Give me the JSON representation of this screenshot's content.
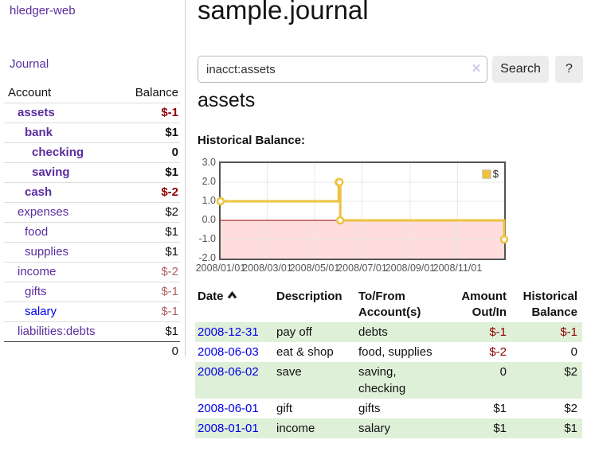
{
  "app": {
    "title": "hledger-web"
  },
  "sidebar": {
    "journal_link": "Journal",
    "accounts_table": {
      "headers": {
        "account": "Account",
        "balance": "Balance"
      },
      "rows": [
        {
          "name": "assets",
          "indent": 1,
          "balance": "$-1",
          "bold": true,
          "neg": "strong"
        },
        {
          "name": "bank",
          "indent": 2,
          "balance": "$1",
          "bold": true
        },
        {
          "name": "checking",
          "indent": 3,
          "balance": "0",
          "bold": true
        },
        {
          "name": "saving",
          "indent": 3,
          "balance": "$1",
          "bold": true
        },
        {
          "name": "cash",
          "indent": 2,
          "balance": "$-2",
          "bold": true,
          "neg": "strong"
        },
        {
          "name": "expenses",
          "indent": 1,
          "balance": "$2"
        },
        {
          "name": "food",
          "indent": 2,
          "balance": "$1"
        },
        {
          "name": "supplies",
          "indent": 2,
          "balance": "$1"
        },
        {
          "name": "income",
          "indent": 1,
          "balance": "$-2",
          "neg": "muted"
        },
        {
          "name": "gifts",
          "indent": 2,
          "balance": "$-1",
          "neg": "muted"
        },
        {
          "name": "salary",
          "indent": 2,
          "balance": "$-1",
          "neg": "muted",
          "link_blue": true
        },
        {
          "name": "liabilities:debts",
          "indent": 1,
          "balance": "$1"
        }
      ],
      "total": "0"
    }
  },
  "header": {
    "title": "sample.journal"
  },
  "search": {
    "value": "inacct:assets",
    "clear_icon": "×",
    "button_label": "Search",
    "help_label": "?"
  },
  "account_page": {
    "heading": "assets",
    "chart_label": "Historical Balance:"
  },
  "chart_data": {
    "type": "line",
    "step": true,
    "title": "",
    "xlabel": "",
    "ylabel": "",
    "xlim_days": [
      0,
      365
    ],
    "ylim": [
      -2,
      3
    ],
    "grid": true,
    "legend_position": "top-right",
    "legend": {
      "label": "$",
      "swatch_color": "#edc240"
    },
    "series": [
      {
        "name": "$",
        "color": "#edc240",
        "points": [
          {
            "date": "2008-01-01",
            "day": 0,
            "value": 1
          },
          {
            "date": "2008-06-01",
            "day": 152,
            "value": 2
          },
          {
            "date": "2008-06-02",
            "day": 153,
            "value": 2
          },
          {
            "date": "2008-06-03",
            "day": 154,
            "value": 0
          },
          {
            "date": "2008-12-31",
            "day": 365,
            "value": -1
          }
        ]
      }
    ],
    "x_ticks": [
      {
        "label": "2008/01/01",
        "day": 0
      },
      {
        "label": "2008/03/01",
        "day": 60
      },
      {
        "label": "2008/05/01",
        "day": 121
      },
      {
        "label": "2008/07/01",
        "day": 182
      },
      {
        "label": "2008/09/01",
        "day": 244
      },
      {
        "label": "2008/11/01",
        "day": 305
      }
    ],
    "y_ticks": [
      3.0,
      2.0,
      1.0,
      0.0,
      -1.0,
      -2.0
    ],
    "colors": {
      "gridline": "#e8e8e8",
      "border": "#545454",
      "zero_line": "#990000",
      "negative_region": "#ffdddd",
      "point_fill": "#ffffff"
    }
  },
  "register": {
    "headers": {
      "date": "Date",
      "description": "Description",
      "accounts": "To/From Account(s)",
      "amount": "Amount Out/In",
      "balance": "Historical Balance"
    },
    "sort": "ascending",
    "rows": [
      {
        "date": "2008-12-31",
        "description": "pay off",
        "accounts": "debts",
        "amount": "$-1",
        "amount_neg": true,
        "balance": "$-1",
        "balance_neg": true
      },
      {
        "date": "2008-06-03",
        "description": "eat & shop",
        "accounts": "food, supplies",
        "amount": "$-2",
        "amount_neg": true,
        "balance": "0",
        "balance_neg": false
      },
      {
        "date": "2008-06-02",
        "description": "save",
        "accounts": "saving,\nchecking",
        "amount": "0",
        "amount_neg": false,
        "balance": "$2",
        "balance_neg": false
      },
      {
        "date": "2008-06-01",
        "description": "gift",
        "accounts": "gifts",
        "amount": "$1",
        "amount_neg": false,
        "balance": "$2",
        "balance_neg": false
      },
      {
        "date": "2008-01-01",
        "description": "income",
        "accounts": "salary",
        "amount": "$1",
        "amount_neg": false,
        "balance": "$1",
        "balance_neg": false
      }
    ]
  },
  "colors": {
    "link_purple": "#5b2d9e",
    "link_blue": "#0000e8",
    "negative_strong": "#8b0000",
    "negative_muted": "#b06060",
    "row_green": "#dff0d8",
    "button_bg": "#ececec",
    "series_gold": "#edc240"
  }
}
